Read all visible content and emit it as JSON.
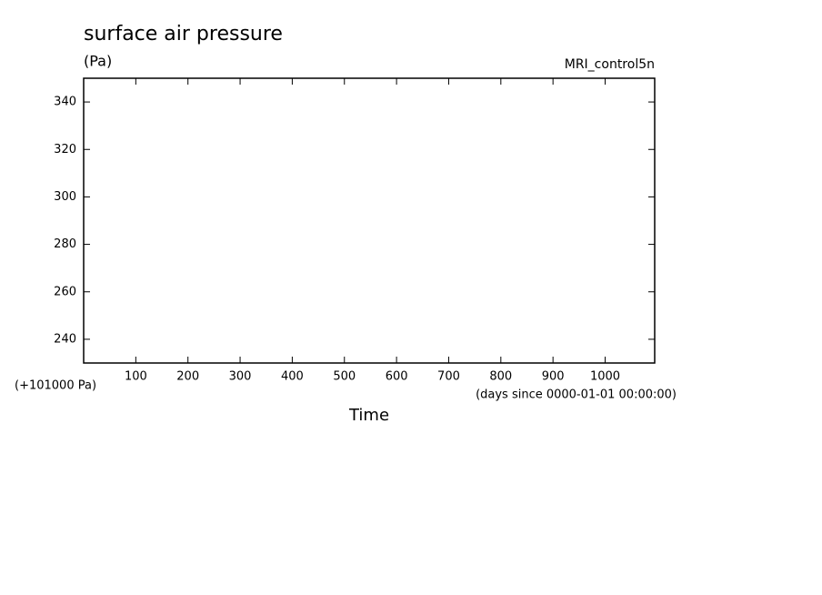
{
  "chart_data": {
    "type": "line",
    "title": "surface air pressure",
    "units": "(Pa)",
    "source": "MRI_control5n",
    "x_label": "Time",
    "x_units": "(days since 0000-01-01 00:00:00)",
    "y_offset_label": "(+101000 Pa)",
    "xlim": [
      0,
      1095
    ],
    "xticks": [
      100,
      200,
      300,
      400,
      500,
      600,
      700,
      800,
      900,
      1000
    ],
    "ylim": [
      230,
      350
    ],
    "yticks": [
      240,
      260,
      280,
      300,
      320,
      340
    ]
  }
}
